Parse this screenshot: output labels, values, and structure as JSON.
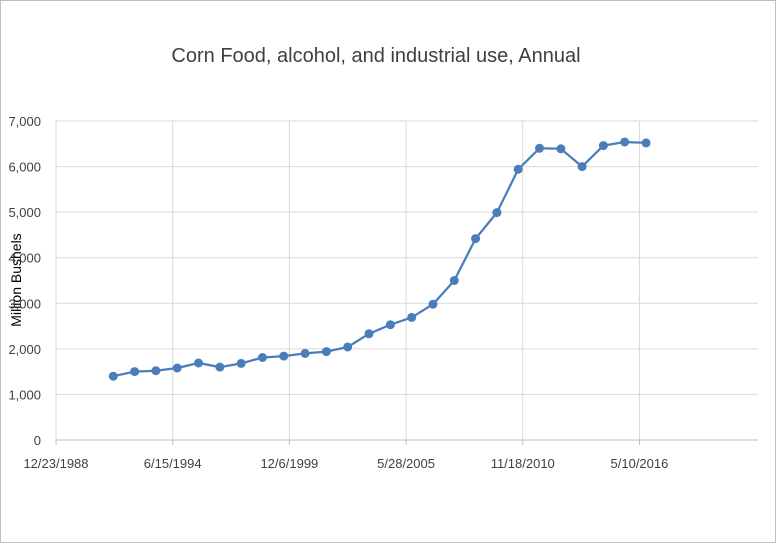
{
  "chart_data": {
    "type": "line",
    "title": "Corn Food, alcohol, and industrial use, Annual",
    "ylabel": "Million Bushels",
    "xlabel": "",
    "ylim": [
      0,
      7000
    ],
    "yticks": [
      0,
      1000,
      2000,
      3000,
      4000,
      5000,
      6000,
      7000
    ],
    "ytick_labels": [
      "0",
      "1,000",
      "2,000",
      "3,000",
      "4,000",
      "5,000",
      "6,000",
      "7,000"
    ],
    "xlim": [
      "1988-12-23",
      "2021-12-02"
    ],
    "xticks": [
      "1988-12-23",
      "1994-06-15",
      "1999-12-06",
      "2005-05-28",
      "2010-11-18",
      "2016-05-10"
    ],
    "xtick_labels": [
      "12/23/1988",
      "6/15/1994",
      "12/6/1999",
      "5/28/2005",
      "11/18/2010",
      "5/10/2016"
    ],
    "grid": true,
    "line_color": "#4a7ebb",
    "series": [
      {
        "x": [
          "1991-09-01",
          "1992-09-01",
          "1993-09-01",
          "1994-09-01",
          "1995-09-01",
          "1996-09-01",
          "1997-09-01",
          "1998-09-01",
          "1999-09-01",
          "2000-09-01",
          "2001-09-01",
          "2002-09-01",
          "2003-09-01",
          "2004-09-01",
          "2005-09-01",
          "2006-09-01",
          "2007-09-01",
          "2008-09-01",
          "2009-09-01",
          "2010-09-01",
          "2011-09-01",
          "2012-09-01",
          "2013-09-01",
          "2014-09-01",
          "2015-09-01",
          "2016-09-01"
        ],
        "values": [
          1400,
          1500,
          1520,
          1580,
          1690,
          1600,
          1680,
          1810,
          1840,
          1900,
          1940,
          2040,
          2330,
          2530,
          2690,
          2980,
          3500,
          4420,
          4990,
          5940,
          6400,
          6390,
          6000,
          6460,
          6540,
          6520
        ]
      }
    ]
  }
}
